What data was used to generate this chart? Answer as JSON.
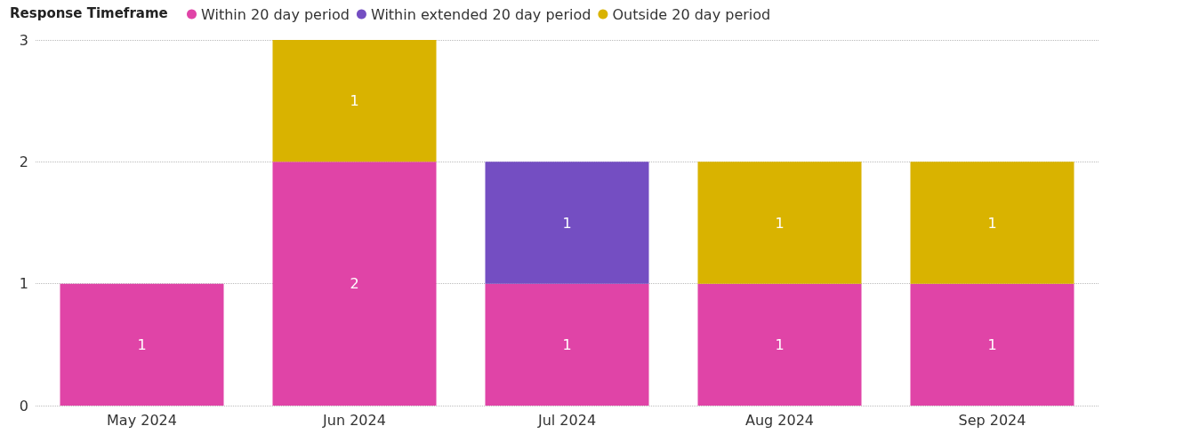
{
  "chart_data": {
    "type": "bar",
    "stacked": true,
    "legend_title": "Response Timeframe",
    "legend": "top left",
    "categories": [
      "May 2024",
      "Jun 2024",
      "Jul 2024",
      "Aug 2024",
      "Sep 2024"
    ],
    "series": [
      {
        "name": "Within 20 day period",
        "color": "#e044a7",
        "values": [
          1,
          2,
          1,
          1,
          1
        ]
      },
      {
        "name": "Within extended 20 day period",
        "color": "#744ec2",
        "values": [
          null,
          null,
          1,
          null,
          null
        ]
      },
      {
        "name": "Outside 20 day period",
        "color": "#d9b300",
        "values": [
          null,
          1,
          null,
          1,
          1
        ]
      }
    ],
    "ylim": [
      0,
      3
    ],
    "yticks": [
      0,
      1,
      2,
      3
    ],
    "grid": "y",
    "data_labels": true
  }
}
